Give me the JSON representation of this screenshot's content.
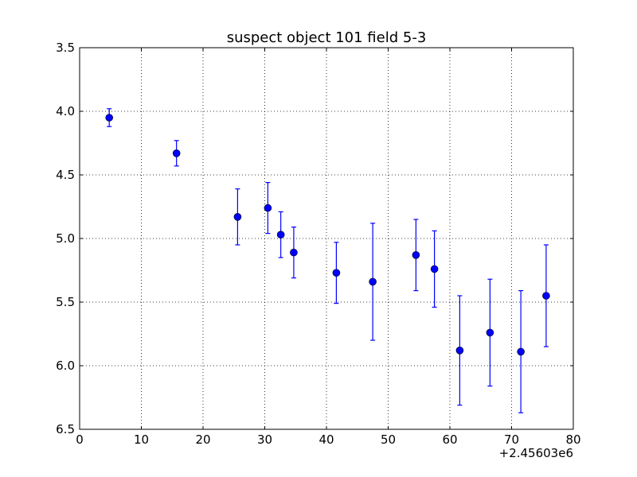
{
  "chart_data": {
    "type": "scatter",
    "title": "suspect object 101 field 5-3",
    "xlabel": "",
    "ylabel": "",
    "x_offset_label": "+2.45603e6",
    "xlim": [
      0,
      80
    ],
    "ylim": [
      6.5,
      3.5
    ],
    "y_inverted": true,
    "grid": true,
    "marker_color": "#0000ff",
    "x_ticks": [
      0,
      10,
      20,
      30,
      40,
      50,
      60,
      70,
      80
    ],
    "x_tick_labels": [
      "0",
      "10",
      "20",
      "30",
      "40",
      "50",
      "60",
      "70",
      "80"
    ],
    "y_ticks": [
      3.5,
      4.0,
      4.5,
      5.0,
      5.5,
      6.0,
      6.5
    ],
    "y_tick_labels": [
      "3.5",
      "4.0",
      "4.5",
      "5.0",
      "5.5",
      "6.0",
      "6.5"
    ],
    "series": [
      {
        "points": [
          {
            "x": 4.8,
            "y": 4.05,
            "err": 0.07
          },
          {
            "x": 15.7,
            "y": 4.33,
            "err": 0.1
          },
          {
            "x": 25.6,
            "y": 4.83,
            "err": 0.22
          },
          {
            "x": 30.5,
            "y": 4.76,
            "err": 0.2
          },
          {
            "x": 32.6,
            "y": 4.97,
            "err": 0.18
          },
          {
            "x": 34.7,
            "y": 5.11,
            "err": 0.2
          },
          {
            "x": 41.6,
            "y": 5.27,
            "err": 0.24
          },
          {
            "x": 47.5,
            "y": 5.34,
            "err": 0.46
          },
          {
            "x": 54.5,
            "y": 5.13,
            "err": 0.28
          },
          {
            "x": 57.5,
            "y": 5.24,
            "err": 0.3
          },
          {
            "x": 61.6,
            "y": 5.88,
            "err": 0.43
          },
          {
            "x": 66.5,
            "y": 5.74,
            "err": 0.42
          },
          {
            "x": 71.5,
            "y": 5.89,
            "err": 0.48
          },
          {
            "x": 75.6,
            "y": 5.45,
            "err": 0.4
          }
        ]
      }
    ]
  }
}
